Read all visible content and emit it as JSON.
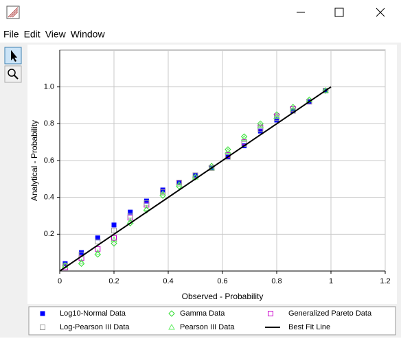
{
  "window": {
    "menu": [
      "File",
      "Edit",
      "View",
      "Window"
    ]
  },
  "chart_data": {
    "type": "scatter",
    "xlabel": "Observed - Probability",
    "ylabel": "Analytical - Probability",
    "xlim": [
      0,
      1.2
    ],
    "xticks": [
      0,
      0.2,
      0.4,
      0.6,
      0.8,
      1,
      1.2
    ],
    "ylim": [
      0,
      1.2
    ],
    "yticks": [
      0.2,
      0.4,
      0.6,
      {
        "value": 0.8,
        "label": "0.8"
      },
      {
        "value": 1,
        "label": "1.0"
      }
    ],
    "grid": true,
    "series": [
      {
        "name": "Log10-Normal Data",
        "color": "#0000ff",
        "marker": "filled-square",
        "x": [
          0.02,
          0.08,
          0.14,
          0.2,
          0.26,
          0.32,
          0.38,
          0.44,
          0.5,
          0.56,
          0.62,
          0.68,
          0.74,
          0.8,
          0.86,
          0.92,
          0.98
        ],
        "values": [
          0.04,
          0.1,
          0.18,
          0.25,
          0.32,
          0.38,
          0.44,
          0.48,
          0.52,
          0.56,
          0.62,
          0.68,
          0.76,
          0.82,
          0.87,
          0.92,
          0.98
        ]
      },
      {
        "name": "Gamma Data",
        "color": "#33dd33",
        "marker": "diamond",
        "x": [
          0.02,
          0.08,
          0.14,
          0.2,
          0.26,
          0.32,
          0.38,
          0.44,
          0.5,
          0.56,
          0.62,
          0.68,
          0.74,
          0.8,
          0.86,
          0.92,
          0.98
        ],
        "values": [
          0.03,
          0.04,
          0.09,
          0.15,
          0.26,
          0.33,
          0.41,
          0.46,
          0.51,
          0.57,
          0.66,
          0.73,
          0.8,
          0.85,
          0.89,
          0.93,
          0.98
        ]
      },
      {
        "name": "Generalized Pareto Data",
        "color": "#cc00cc",
        "marker": "open-square",
        "x": [
          0.02,
          0.08,
          0.14,
          0.2,
          0.26,
          0.32,
          0.38,
          0.44,
          0.5,
          0.56,
          0.62,
          0.68,
          0.74,
          0.8,
          0.86,
          0.92,
          0.98
        ],
        "values": [
          0.02,
          0.07,
          0.12,
          0.18,
          0.29,
          0.36,
          0.43,
          0.48,
          0.52,
          0.56,
          0.63,
          0.7,
          0.78,
          0.84,
          0.88,
          0.92,
          0.98
        ]
      },
      {
        "name": "Log-Pearson III Data",
        "color": "#a0a0a0",
        "marker": "open-square",
        "x": [
          0.02,
          0.08,
          0.14,
          0.2,
          0.26,
          0.32,
          0.38,
          0.44,
          0.5,
          0.56,
          0.62,
          0.68,
          0.74,
          0.8,
          0.86,
          0.92,
          0.98
        ],
        "values": [
          0.03,
          0.09,
          0.16,
          0.22,
          0.3,
          0.37,
          0.43,
          0.48,
          0.52,
          0.56,
          0.62,
          0.69,
          0.77,
          0.83,
          0.87,
          0.92,
          0.98
        ]
      },
      {
        "name": "Pearson III Data",
        "color": "#66ee66",
        "marker": "triangle",
        "x": [
          0.02,
          0.08,
          0.14,
          0.2,
          0.26,
          0.32,
          0.38,
          0.44,
          0.5,
          0.56,
          0.62,
          0.68,
          0.74,
          0.8,
          0.86,
          0.92,
          0.98
        ],
        "values": [
          0.03,
          0.05,
          0.1,
          0.17,
          0.27,
          0.34,
          0.42,
          0.47,
          0.51,
          0.56,
          0.65,
          0.72,
          0.79,
          0.84,
          0.88,
          0.93,
          0.98
        ]
      },
      {
        "name": "Best Fit Line",
        "color": "#000000",
        "marker": "line",
        "x": [
          0,
          1
        ],
        "values": [
          0,
          1
        ]
      }
    ]
  }
}
